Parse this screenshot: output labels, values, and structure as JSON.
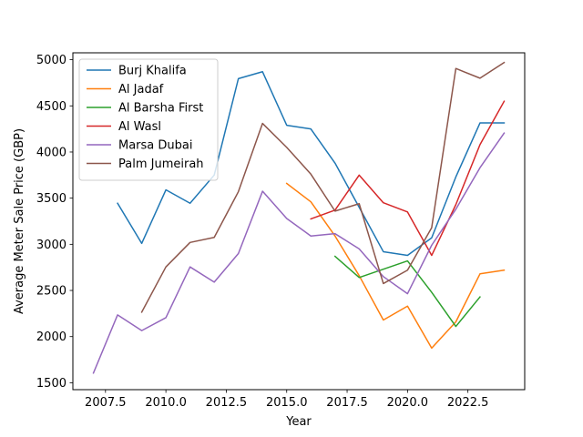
{
  "chart_data": {
    "type": "line",
    "xlabel": "Year",
    "ylabel": "Average Meter Sale Price (GBP)",
    "xlim": [
      2006.15,
      2024.85
    ],
    "ylim": [
      1425,
      5075
    ],
    "xticks": [
      2007.5,
      2010.0,
      2012.5,
      2015.0,
      2017.5,
      2020.0,
      2022.5
    ],
    "xtick_labels": [
      "2007.5",
      "2010.0",
      "2012.5",
      "2015.0",
      "2017.5",
      "2020.0",
      "2022.5"
    ],
    "yticks": [
      1500,
      2000,
      2500,
      3000,
      3500,
      4000,
      4500,
      5000
    ],
    "ytick_labels": [
      "1500",
      "2000",
      "2500",
      "3000",
      "3500",
      "4000",
      "4500",
      "5000"
    ],
    "grid": false,
    "legend_position": "top-left",
    "series": [
      {
        "name": "Burj Khalifa",
        "color": "#1f77b4",
        "x": [
          2008,
          2009,
          2010,
          2011,
          2012,
          2013,
          2014,
          2015,
          2016,
          2017,
          2018,
          2019,
          2020,
          2021,
          2022,
          2023,
          2024
        ],
        "y": [
          3445,
          3010,
          3590,
          3445,
          3750,
          4795,
          4870,
          4290,
          4250,
          3880,
          3400,
          2920,
          2880,
          3070,
          3730,
          4315,
          4315
        ]
      },
      {
        "name": "Al Jadaf",
        "color": "#ff7f0e",
        "x": [
          2015,
          2016,
          2017,
          2018,
          2019,
          2020,
          2021,
          2022,
          2023,
          2024
        ],
        "y": [
          3660,
          3460,
          3090,
          2660,
          2180,
          2330,
          1875,
          2160,
          2680,
          2720
        ]
      },
      {
        "name": "Al Barsha First",
        "color": "#2ca02c",
        "x": [
          2017,
          2018,
          2019,
          2020,
          2021,
          2022,
          2023
        ],
        "y": [
          2870,
          2640,
          2730,
          2820,
          2480,
          2110,
          2430
        ]
      },
      {
        "name": "Al Wasl",
        "color": "#d62728",
        "x": [
          2016,
          2017,
          2018,
          2019,
          2020,
          2021,
          2022,
          2023,
          2024
        ],
        "y": [
          3275,
          3370,
          3750,
          3450,
          3350,
          2880,
          3430,
          4080,
          4550
        ]
      },
      {
        "name": "Marsa Dubai",
        "color": "#9467bd",
        "x": [
          2007,
          2008,
          2009,
          2010,
          2011,
          2012,
          2013,
          2014,
          2015,
          2016,
          2017,
          2018,
          2019,
          2020,
          2021,
          2022,
          2023,
          2024
        ],
        "y": [
          1605,
          2235,
          2065,
          2205,
          2755,
          2590,
          2900,
          3575,
          3280,
          3090,
          3115,
          2950,
          2650,
          2465,
          2990,
          3380,
          3830,
          4205
        ]
      },
      {
        "name": "Palm Jumeirah",
        "color": "#8c564b",
        "x": [
          2009,
          2010,
          2011,
          2012,
          2013,
          2014,
          2015,
          2016,
          2017,
          2018,
          2019,
          2020,
          2021,
          2022,
          2023,
          2024
        ],
        "y": [
          2265,
          2755,
          3020,
          3075,
          3570,
          4310,
          4050,
          3760,
          3360,
          3440,
          2575,
          2720,
          3180,
          4905,
          4800,
          4970
        ]
      }
    ]
  }
}
